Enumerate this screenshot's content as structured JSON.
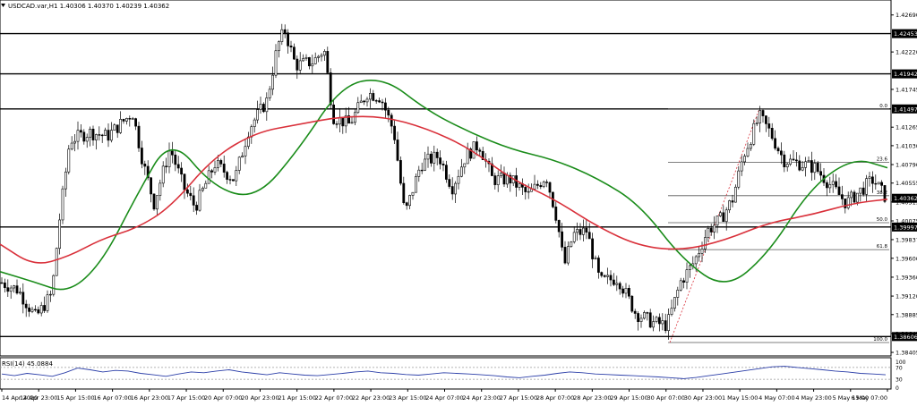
{
  "title": "USDCAD.var,H1  1.40306 1.40370 1.40239 1.40362",
  "chart_data": {
    "type": "candlestick",
    "symbol": "USDCAD.var,H1",
    "ohlc_header": {
      "open": 1.40306,
      "high": 1.4037,
      "low": 1.40239,
      "close": 1.40362
    },
    "ylim": [
      1.3836,
      1.4288
    ],
    "y_ticks": [
      "1.42690",
      "1.42220",
      "1.41745",
      "1.41265",
      "1.41030",
      "1.40790",
      "1.40555",
      "1.40315",
      "1.40075",
      "1.39837",
      "1.39600",
      "1.39360",
      "1.39120",
      "1.38885",
      "1.38645",
      "1.38405"
    ],
    "x_ticks": [
      "14 Apr 2020",
      "14 Apr 23:00",
      "15 Apr 15:00",
      "16 Apr 07:00",
      "16 Apr 23:00",
      "17 Apr 15:00",
      "20 Apr 07:00",
      "20 Apr 23:00",
      "21 Apr 15:00",
      "22 Apr 07:00",
      "22 Apr 23:00",
      "23 Apr 15:00",
      "24 Apr 07:00",
      "24 Apr 23:00",
      "27 Apr 15:00",
      "28 Apr 07:00",
      "28 Apr 23:00",
      "29 Apr 15:00",
      "30 Apr 07:00",
      "30 Apr 23:00",
      "1 May 15:00",
      "4 May 07:00",
      "4 May 23:00",
      "5 May 15:00",
      "6 May 07:00"
    ],
    "horizontal_levels": [
      {
        "value": 1.42453,
        "label": "1.42453"
      },
      {
        "value": 1.41942,
        "label": "1.41942"
      },
      {
        "value": 1.41497,
        "label": "1.41497"
      },
      {
        "value": 1.39997,
        "label": "1.39997"
      },
      {
        "value": 1.38606,
        "label": "1.38606"
      }
    ],
    "current_price": {
      "value": 1.40362,
      "label": "1.40362"
    },
    "fibonacci": {
      "levels": [
        {
          "label": "0.0",
          "value": 1.41497
        },
        {
          "label": "23.6",
          "value": 1.40819
        },
        {
          "label": "38.2",
          "value": 1.40395
        },
        {
          "label": "50.0",
          "value": 1.40052
        },
        {
          "label": "61.8",
          "value": 1.3971
        },
        {
          "label": "100.0",
          "value": 1.3853
        }
      ]
    },
    "series": [
      {
        "name": "",
        "color": "#1a8c1a",
        "x": [
          0,
          4,
          8,
          12,
          16,
          20,
          25,
          30,
          35,
          40,
          45,
          50,
          55,
          60,
          65,
          70,
          75,
          80,
          85,
          90,
          95,
          100,
          104
        ],
        "values": [
          1.3943,
          1.393,
          1.3915,
          1.3955,
          1.404,
          1.4115,
          1.405,
          1.4035,
          1.4098,
          1.418,
          1.419,
          1.4148,
          1.412,
          1.4098,
          1.4085,
          1.4062,
          1.4028,
          1.3958,
          1.392,
          1.3965,
          1.405,
          1.4088,
          1.4075
        ]
      },
      {
        "name": "",
        "color": "#d9303a",
        "x": [
          0,
          4,
          8,
          12,
          16,
          20,
          25,
          30,
          35,
          40,
          45,
          50,
          55,
          60,
          65,
          70,
          75,
          80,
          85,
          90,
          95,
          100,
          104
        ],
        "values": [
          1.3978,
          1.395,
          1.3962,
          1.3985,
          1.3998,
          1.4025,
          1.4088,
          1.412,
          1.413,
          1.414,
          1.414,
          1.4125,
          1.41,
          1.406,
          1.4035,
          1.4,
          1.3975,
          1.397,
          1.3983,
          1.4005,
          1.4015,
          1.403,
          1.4035
        ]
      }
    ],
    "rsi": {
      "label": "RSI(14) 45.0884",
      "levels": [
        100,
        70,
        30,
        0
      ],
      "values": [
        48,
        42,
        50,
        45,
        40,
        52,
        68,
        62,
        55,
        60,
        58,
        50,
        45,
        40,
        48,
        55,
        52,
        58,
        62,
        55,
        50,
        45,
        52,
        48,
        44,
        42,
        46,
        50,
        55,
        58,
        52,
        50,
        46,
        44,
        48,
        52,
        50,
        48,
        45,
        42,
        38,
        35,
        40,
        44,
        50,
        55,
        52,
        48,
        46,
        44,
        42,
        40,
        38,
        35,
        32,
        36,
        42,
        48,
        54,
        60,
        66,
        72,
        74,
        70,
        66,
        62,
        58,
        55,
        50,
        48,
        45
      ]
    }
  }
}
